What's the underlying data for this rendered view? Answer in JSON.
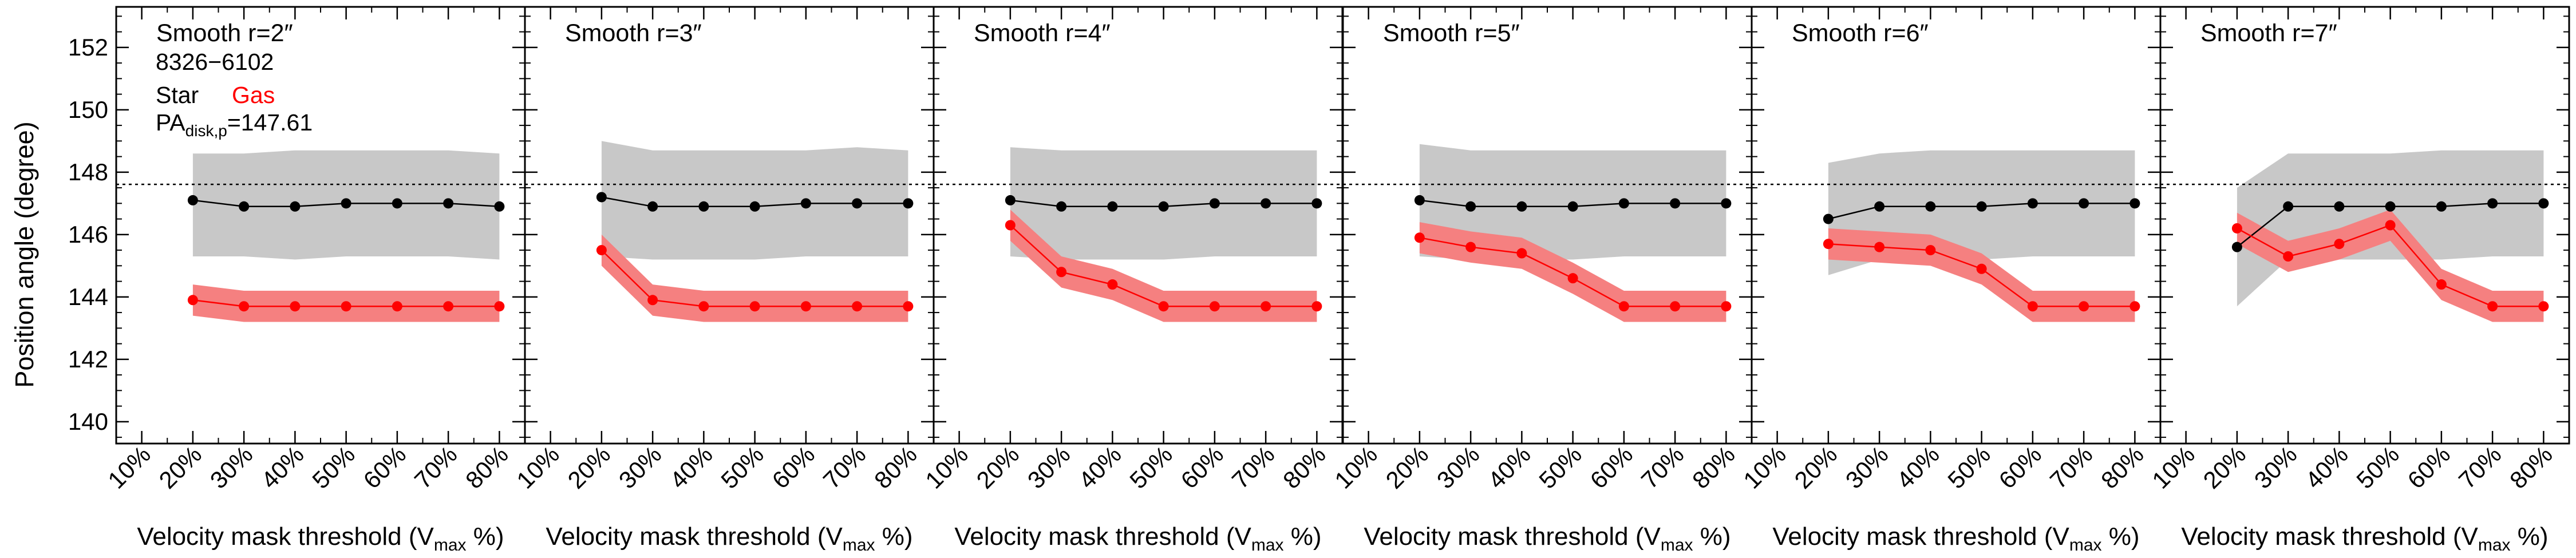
{
  "figure": {
    "ylabel": "Position angle (degree)",
    "xlabel_main": "Velocity mask threshold (V",
    "xlabel_sub": "max",
    "xlabel_tail": " %)",
    "galaxy_id": "8326−6102",
    "legend_star": "Star",
    "legend_gas": "Gas",
    "pa_label_main": "PA",
    "pa_label_sub": "disk,p",
    "pa_label_value": "=147.61"
  },
  "colors": {
    "star": "#000000",
    "star_band": "#c8c8c8",
    "gas": "#ff0000",
    "gas_band": "#f58080",
    "reference_line": "#000000"
  },
  "chart_data": [
    {
      "type": "line",
      "title": "Smooth r=2″",
      "x_tick_labels": [
        "10%",
        "20%",
        "30%",
        "40%",
        "50%",
        "60%",
        "70%",
        "80%"
      ],
      "xlim": [
        5,
        85
      ],
      "ylim": [
        139.3,
        153.3
      ],
      "y_ticks": [
        140,
        142,
        144,
        146,
        148,
        150,
        152
      ],
      "reference_line": 147.61,
      "series": [
        {
          "name": "Star",
          "x": [
            20,
            30,
            40,
            50,
            60,
            70,
            80
          ],
          "values": [
            147.1,
            146.9,
            146.9,
            147.0,
            147.0,
            147.0,
            146.9
          ],
          "band_upper": [
            148.6,
            148.6,
            148.7,
            148.7,
            148.7,
            148.7,
            148.6
          ],
          "band_lower": [
            145.3,
            145.3,
            145.2,
            145.3,
            145.3,
            145.3,
            145.2
          ]
        },
        {
          "name": "Gas",
          "x": [
            20,
            30,
            40,
            50,
            60,
            70,
            80
          ],
          "values": [
            143.9,
            143.7,
            143.7,
            143.7,
            143.7,
            143.7,
            143.7
          ],
          "band_upper": [
            144.4,
            144.2,
            144.2,
            144.2,
            144.2,
            144.2,
            144.2
          ],
          "band_lower": [
            143.4,
            143.2,
            143.2,
            143.2,
            143.2,
            143.2,
            143.2
          ]
        }
      ]
    },
    {
      "type": "line",
      "title": "Smooth r=3″",
      "x_tick_labels": [
        "10%",
        "20%",
        "30%",
        "40%",
        "50%",
        "60%",
        "70%",
        "80%"
      ],
      "xlim": [
        5,
        85
      ],
      "ylim": [
        139.3,
        153.3
      ],
      "y_ticks": [
        140,
        142,
        144,
        146,
        148,
        150,
        152
      ],
      "reference_line": 147.61,
      "series": [
        {
          "name": "Star",
          "x": [
            20,
            30,
            40,
            50,
            60,
            70,
            80
          ],
          "values": [
            147.2,
            146.9,
            146.9,
            146.9,
            147.0,
            147.0,
            147.0
          ],
          "band_upper": [
            149.0,
            148.7,
            148.7,
            148.7,
            148.7,
            148.8,
            148.7
          ],
          "band_lower": [
            145.3,
            145.2,
            145.2,
            145.2,
            145.3,
            145.3,
            145.3
          ]
        },
        {
          "name": "Gas",
          "x": [
            20,
            30,
            40,
            50,
            60,
            70,
            80
          ],
          "values": [
            145.5,
            143.9,
            143.7,
            143.7,
            143.7,
            143.7,
            143.7
          ],
          "band_upper": [
            146.0,
            144.4,
            144.2,
            144.2,
            144.2,
            144.2,
            144.2
          ],
          "band_lower": [
            145.0,
            143.4,
            143.2,
            143.2,
            143.2,
            143.2,
            143.2
          ]
        }
      ]
    },
    {
      "type": "line",
      "title": "Smooth r=4″",
      "x_tick_labels": [
        "10%",
        "20%",
        "30%",
        "40%",
        "50%",
        "60%",
        "70%",
        "80%"
      ],
      "xlim": [
        5,
        85
      ],
      "ylim": [
        139.3,
        153.3
      ],
      "y_ticks": [
        140,
        142,
        144,
        146,
        148,
        150,
        152
      ],
      "reference_line": 147.61,
      "series": [
        {
          "name": "Star",
          "x": [
            20,
            30,
            40,
            50,
            60,
            70,
            80
          ],
          "values": [
            147.1,
            146.9,
            146.9,
            146.9,
            147.0,
            147.0,
            147.0
          ],
          "band_upper": [
            148.8,
            148.7,
            148.7,
            148.7,
            148.7,
            148.7,
            148.7
          ],
          "band_lower": [
            145.3,
            145.2,
            145.2,
            145.2,
            145.3,
            145.3,
            145.3
          ]
        },
        {
          "name": "Gas",
          "x": [
            20,
            30,
            40,
            50,
            60,
            70,
            80
          ],
          "values": [
            146.3,
            144.8,
            144.4,
            143.7,
            143.7,
            143.7,
            143.7
          ],
          "band_upper": [
            146.8,
            145.3,
            144.9,
            144.2,
            144.2,
            144.2,
            144.2
          ],
          "band_lower": [
            145.8,
            144.3,
            143.9,
            143.2,
            143.2,
            143.2,
            143.2
          ]
        }
      ]
    },
    {
      "type": "line",
      "title": "Smooth r=5″",
      "x_tick_labels": [
        "10%",
        "20%",
        "30%",
        "40%",
        "50%",
        "60%",
        "70%",
        "80%"
      ],
      "xlim": [
        5,
        85
      ],
      "ylim": [
        139.3,
        153.3
      ],
      "y_ticks": [
        140,
        142,
        144,
        146,
        148,
        150,
        152
      ],
      "reference_line": 147.61,
      "series": [
        {
          "name": "Star",
          "x": [
            20,
            30,
            40,
            50,
            60,
            70,
            80
          ],
          "values": [
            147.1,
            146.9,
            146.9,
            146.9,
            147.0,
            147.0,
            147.0
          ],
          "band_upper": [
            148.9,
            148.7,
            148.7,
            148.7,
            148.7,
            148.7,
            148.7
          ],
          "band_lower": [
            145.3,
            145.2,
            145.2,
            145.2,
            145.3,
            145.3,
            145.3
          ]
        },
        {
          "name": "Gas",
          "x": [
            20,
            30,
            40,
            50,
            60,
            70,
            80
          ],
          "values": [
            145.9,
            145.6,
            145.4,
            144.6,
            143.7,
            143.7,
            143.7
          ],
          "band_upper": [
            146.4,
            146.1,
            145.9,
            145.1,
            144.2,
            144.2,
            144.2
          ],
          "band_lower": [
            145.4,
            145.1,
            144.9,
            144.1,
            143.2,
            143.2,
            143.2
          ]
        }
      ]
    },
    {
      "type": "line",
      "title": "Smooth r=6″",
      "x_tick_labels": [
        "10%",
        "20%",
        "30%",
        "40%",
        "50%",
        "60%",
        "70%",
        "80%"
      ],
      "xlim": [
        5,
        85
      ],
      "ylim": [
        139.3,
        153.3
      ],
      "y_ticks": [
        140,
        142,
        144,
        146,
        148,
        150,
        152
      ],
      "reference_line": 147.61,
      "series": [
        {
          "name": "Star",
          "x": [
            20,
            30,
            40,
            50,
            60,
            70,
            80
          ],
          "values": [
            146.5,
            146.9,
            146.9,
            146.9,
            147.0,
            147.0,
            147.0
          ],
          "band_upper": [
            148.3,
            148.6,
            148.7,
            148.7,
            148.7,
            148.7,
            148.7
          ],
          "band_lower": [
            144.7,
            145.2,
            145.2,
            145.2,
            145.3,
            145.3,
            145.3
          ]
        },
        {
          "name": "Gas",
          "x": [
            20,
            30,
            40,
            50,
            60,
            70,
            80
          ],
          "values": [
            145.7,
            145.6,
            145.5,
            144.9,
            143.7,
            143.7,
            143.7
          ],
          "band_upper": [
            146.2,
            146.1,
            146.0,
            145.4,
            144.2,
            144.2,
            144.2
          ],
          "band_lower": [
            145.2,
            145.1,
            145.0,
            144.4,
            143.2,
            143.2,
            143.2
          ]
        }
      ]
    },
    {
      "type": "line",
      "title": "Smooth r=7″",
      "x_tick_labels": [
        "10%",
        "20%",
        "30%",
        "40%",
        "50%",
        "60%",
        "70%",
        "80%"
      ],
      "xlim": [
        5,
        85
      ],
      "ylim": [
        139.3,
        153.3
      ],
      "y_ticks": [
        140,
        142,
        144,
        146,
        148,
        150,
        152
      ],
      "reference_line": 147.61,
      "series": [
        {
          "name": "Star",
          "x": [
            20,
            30,
            40,
            50,
            60,
            70,
            80
          ],
          "values": [
            145.6,
            146.9,
            146.9,
            146.9,
            146.9,
            147.0,
            147.0
          ],
          "band_upper": [
            147.5,
            148.6,
            148.6,
            148.6,
            148.7,
            148.7,
            148.7
          ],
          "band_lower": [
            143.7,
            145.2,
            145.2,
            145.2,
            145.2,
            145.3,
            145.3
          ]
        },
        {
          "name": "Gas",
          "x": [
            20,
            30,
            40,
            50,
            60,
            70,
            80
          ],
          "values": [
            146.2,
            145.3,
            145.7,
            146.3,
            144.4,
            143.7,
            143.7
          ],
          "band_upper": [
            146.7,
            145.8,
            146.2,
            146.8,
            144.9,
            144.2,
            144.2
          ],
          "band_lower": [
            145.7,
            144.8,
            145.2,
            145.8,
            143.9,
            143.2,
            143.2
          ]
        }
      ]
    }
  ]
}
